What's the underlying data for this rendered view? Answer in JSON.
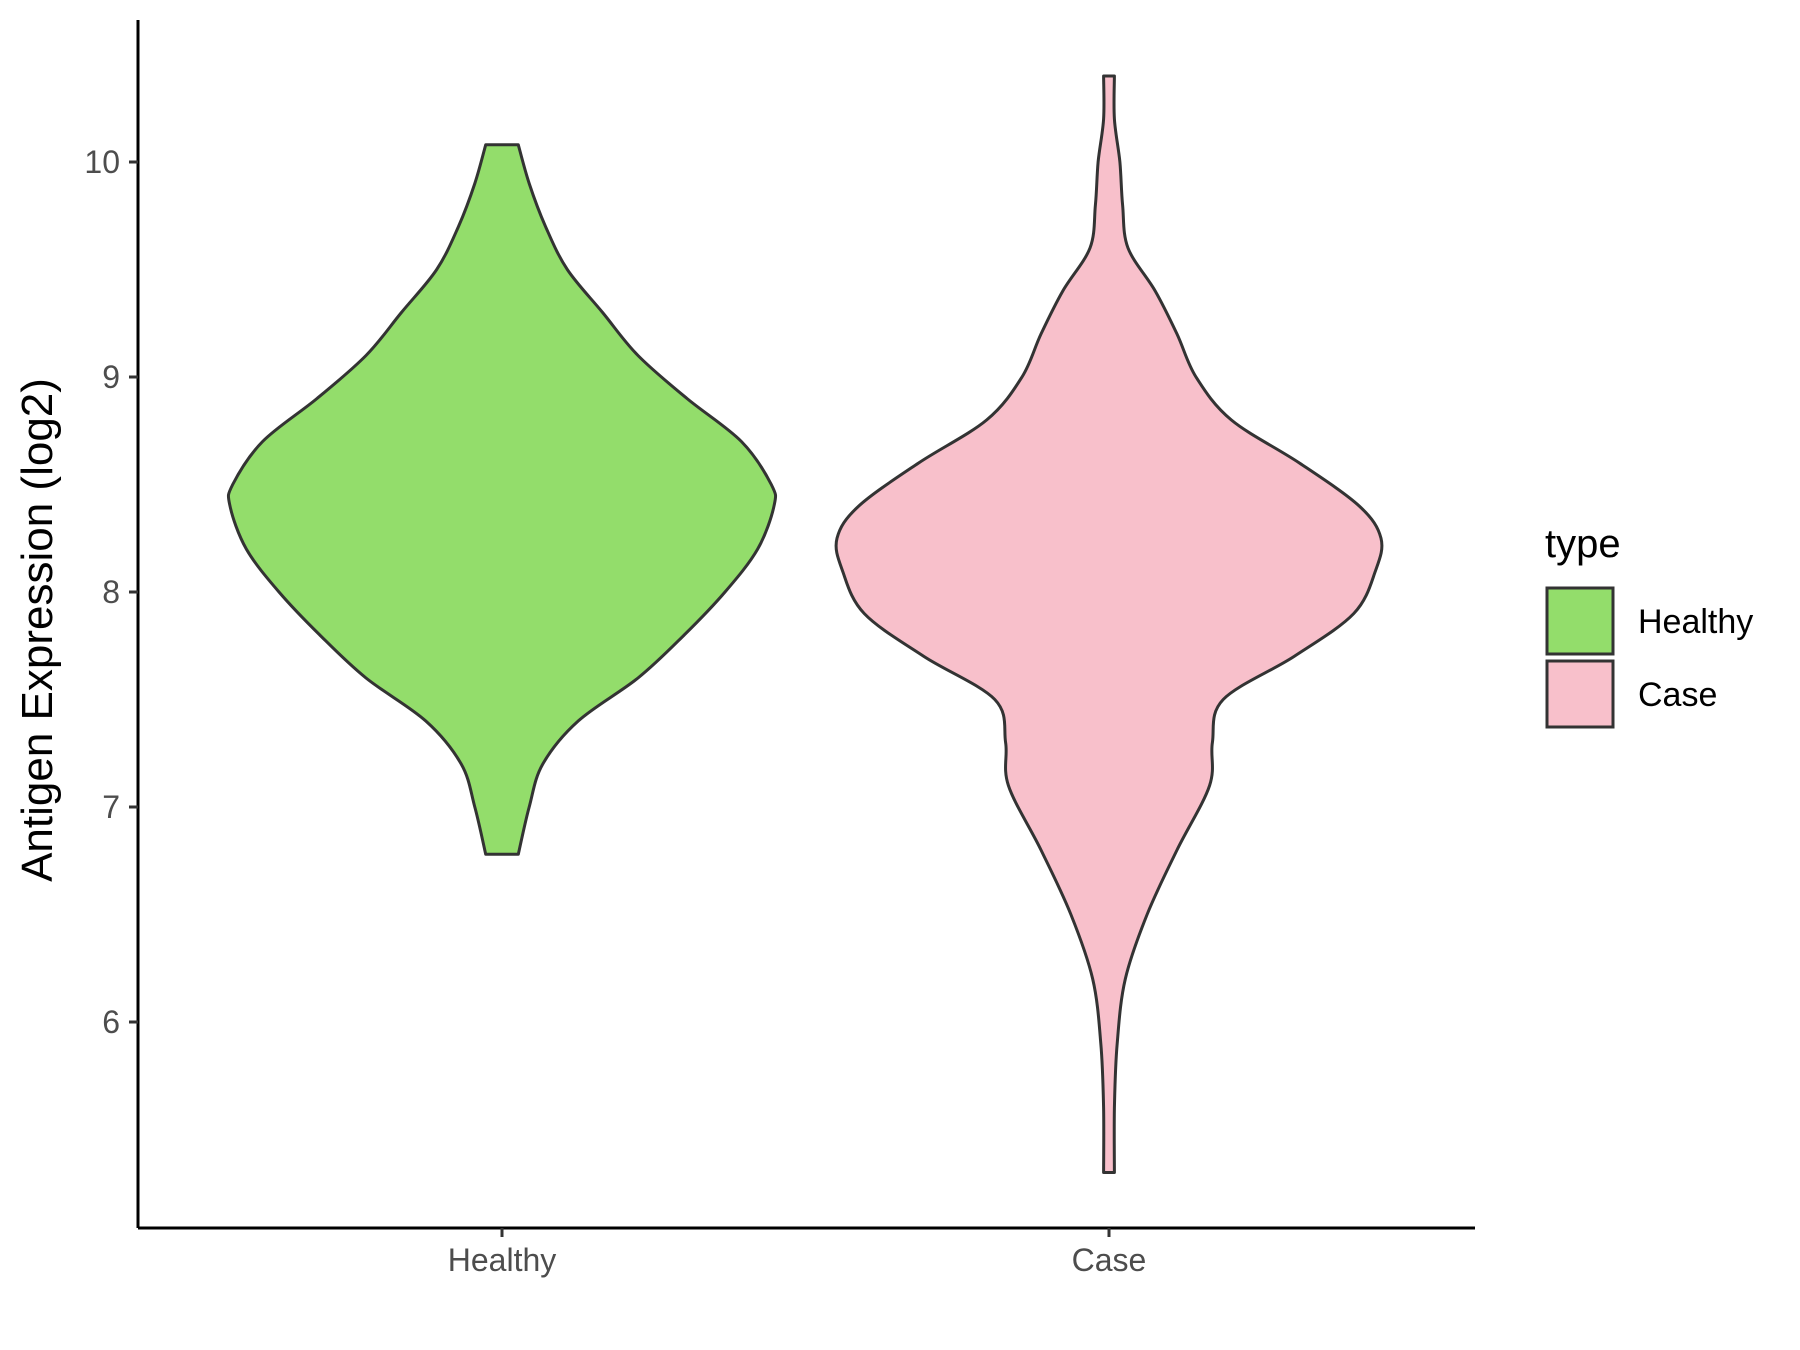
{
  "chart_data": {
    "type": "violin",
    "title": "",
    "xlabel": "",
    "ylabel": "Antigen Expression (log2)",
    "ylim": [
      5.1,
      10.7
    ],
    "yticks": [
      6,
      7,
      8,
      9,
      10
    ],
    "categories": [
      "Healthy",
      "Case"
    ],
    "legend": {
      "title": "type",
      "position": "right",
      "entries": [
        {
          "label": "Healthy",
          "color": "#93dd6b"
        },
        {
          "label": "Case",
          "color": "#f8c0cb"
        }
      ]
    },
    "series": [
      {
        "name": "Healthy",
        "color": "#93dd6b",
        "min": 6.78,
        "max": 10.08,
        "density_profile": [
          [
            6.78,
            0.06
          ],
          [
            7.0,
            0.1
          ],
          [
            7.2,
            0.15
          ],
          [
            7.4,
            0.28
          ],
          [
            7.6,
            0.5
          ],
          [
            7.8,
            0.67
          ],
          [
            8.0,
            0.82
          ],
          [
            8.2,
            0.94
          ],
          [
            8.4,
            1.0
          ],
          [
            8.5,
            0.99
          ],
          [
            8.7,
            0.88
          ],
          [
            8.9,
            0.68
          ],
          [
            9.1,
            0.5
          ],
          [
            9.3,
            0.37
          ],
          [
            9.5,
            0.24
          ],
          [
            9.7,
            0.16
          ],
          [
            9.9,
            0.1
          ],
          [
            10.08,
            0.06
          ]
        ]
      },
      {
        "name": "Case",
        "color": "#f8c0cb",
        "min": 5.3,
        "max": 10.4,
        "density_profile": [
          [
            5.3,
            0.02
          ],
          [
            5.6,
            0.02
          ],
          [
            5.9,
            0.03
          ],
          [
            6.2,
            0.06
          ],
          [
            6.5,
            0.14
          ],
          [
            6.8,
            0.25
          ],
          [
            7.1,
            0.37
          ],
          [
            7.3,
            0.38
          ],
          [
            7.5,
            0.42
          ],
          [
            7.7,
            0.68
          ],
          [
            7.9,
            0.9
          ],
          [
            8.1,
            0.98
          ],
          [
            8.25,
            1.0
          ],
          [
            8.4,
            0.92
          ],
          [
            8.6,
            0.7
          ],
          [
            8.8,
            0.45
          ],
          [
            9.0,
            0.32
          ],
          [
            9.2,
            0.25
          ],
          [
            9.4,
            0.17
          ],
          [
            9.6,
            0.07
          ],
          [
            9.8,
            0.05
          ],
          [
            10.0,
            0.04
          ],
          [
            10.2,
            0.02
          ],
          [
            10.4,
            0.02
          ]
        ]
      }
    ]
  }
}
